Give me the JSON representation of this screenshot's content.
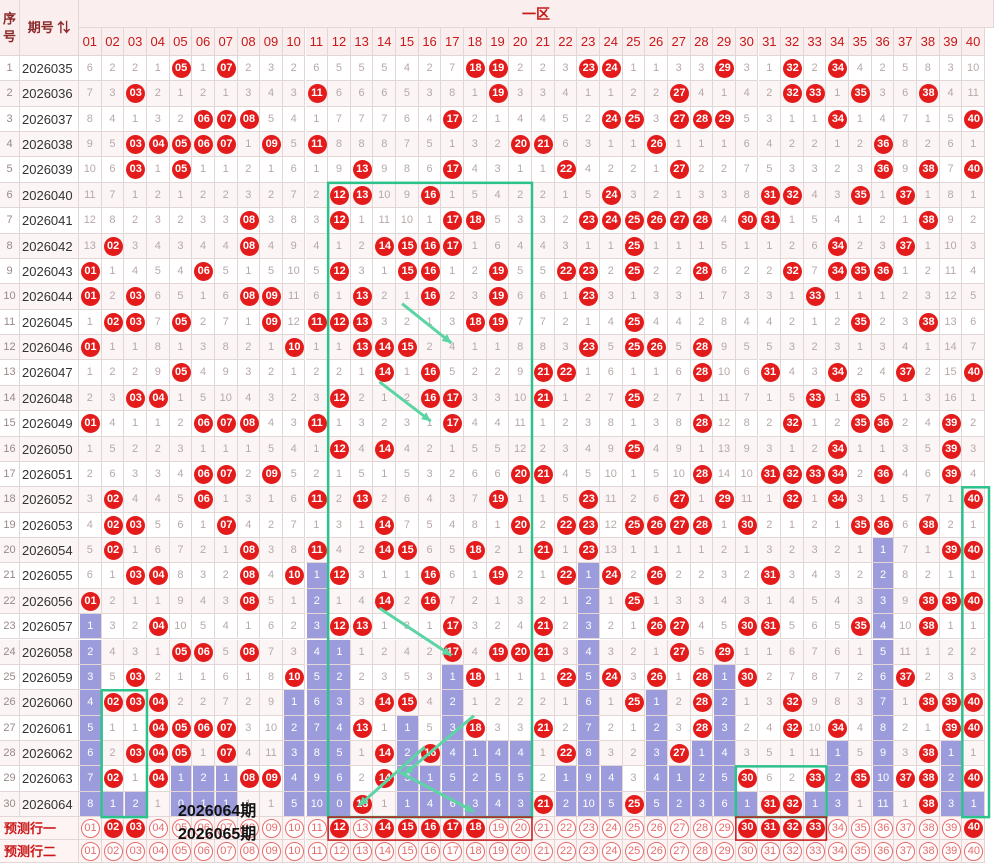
{
  "headers": {
    "seq": "序号",
    "period": "期号",
    "zone": "一区",
    "numbers": [
      "01",
      "02",
      "03",
      "04",
      "05",
      "06",
      "07",
      "08",
      "09",
      "10",
      "11",
      "12",
      "13",
      "14",
      "15",
      "16",
      "17",
      "18",
      "19",
      "20",
      "21",
      "22",
      "23",
      "24",
      "25",
      "26",
      "27",
      "28",
      "29",
      "30",
      "31",
      "32",
      "33",
      "34",
      "35",
      "36",
      "37",
      "38",
      "39",
      "40"
    ]
  },
  "chart_data": {
    "type": "table",
    "periods": [
      "2026035",
      "2026036",
      "2026037",
      "2026038",
      "2026039",
      "2026040",
      "2026041",
      "2026042",
      "2026043",
      "2026044",
      "2026045",
      "2026046",
      "2026047",
      "2026048",
      "2026049",
      "2026050",
      "2026051",
      "2026052",
      "2026053",
      "2026054",
      "2026055",
      "2026056",
      "2026057",
      "2026058",
      "2026059",
      "2026060",
      "2026061",
      "2026062",
      "2026063",
      "2026064"
    ],
    "draws": [
      [
        5,
        7,
        18,
        19,
        23,
        24,
        29,
        32,
        34
      ],
      [
        3,
        11,
        19,
        27,
        32,
        33,
        35,
        38
      ],
      [
        6,
        7,
        8,
        17,
        24,
        25,
        27,
        28,
        29,
        34,
        40
      ],
      [
        3,
        4,
        5,
        6,
        7,
        9,
        11,
        20,
        21,
        26,
        36
      ],
      [
        3,
        5,
        13,
        17,
        22,
        27,
        36,
        38,
        40
      ],
      [
        12,
        13,
        16,
        24,
        31,
        32,
        35,
        37
      ],
      [
        8,
        12,
        17,
        18,
        23,
        24,
        25,
        26,
        27,
        28,
        30,
        31,
        38
      ],
      [
        2,
        8,
        14,
        15,
        16,
        17,
        25,
        34,
        37
      ],
      [
        1,
        6,
        12,
        15,
        16,
        19,
        22,
        23,
        25,
        28,
        32,
        34,
        35,
        36
      ],
      [
        1,
        3,
        8,
        9,
        13,
        16,
        19,
        23,
        33
      ],
      [
        2,
        3,
        5,
        9,
        11,
        12,
        13,
        18,
        19,
        25,
        35,
        38
      ],
      [
        1,
        10,
        13,
        14,
        15,
        23,
        25,
        26,
        28
      ],
      [
        5,
        14,
        16,
        21,
        22,
        28,
        31,
        34,
        37,
        40
      ],
      [
        3,
        4,
        12,
        16,
        17,
        21,
        25,
        33,
        35
      ],
      [
        1,
        6,
        7,
        8,
        11,
        17,
        28,
        32,
        35,
        36,
        39
      ],
      [
        12,
        14,
        25,
        34,
        39
      ],
      [
        6,
        7,
        9,
        20,
        21,
        28,
        31,
        32,
        33,
        34,
        36,
        39
      ],
      [
        2,
        6,
        11,
        13,
        19,
        23,
        27,
        29,
        32,
        34,
        40
      ],
      [
        2,
        3,
        7,
        14,
        20,
        22,
        23,
        25,
        26,
        27,
        28,
        30,
        35,
        36,
        38
      ],
      [
        2,
        8,
        11,
        14,
        15,
        18,
        21,
        23,
        39,
        40
      ],
      [
        3,
        4,
        8,
        10,
        12,
        16,
        19,
        22,
        24,
        26,
        31
      ],
      [
        1,
        8,
        14,
        16,
        25,
        38,
        39,
        40
      ],
      [
        4,
        12,
        13,
        17,
        21,
        26,
        27,
        30,
        31,
        35,
        38
      ],
      [
        5,
        6,
        8,
        17,
        19,
        20,
        21,
        27,
        29
      ],
      [
        3,
        10,
        18,
        22,
        24,
        26,
        28,
        30,
        37
      ],
      [
        2,
        3,
        4,
        14,
        15,
        25,
        28,
        32,
        38,
        39,
        40
      ],
      [
        4,
        5,
        6,
        7,
        13,
        18,
        21,
        28,
        32,
        34,
        39,
        40
      ],
      [
        3,
        4,
        5,
        7,
        14,
        16,
        22,
        27,
        38
      ],
      [
        2,
        4,
        8,
        9,
        14,
        30,
        33,
        35,
        37,
        38,
        40
      ],
      [
        13,
        21,
        25,
        31,
        32,
        38
      ]
    ],
    "missing": {
      "row1": [
        6,
        2,
        2,
        1,
        0,
        1,
        0,
        2,
        3,
        2,
        6,
        5,
        5,
        5,
        4,
        2,
        7,
        0,
        0,
        2,
        2,
        3,
        0,
        0,
        1,
        1,
        3,
        3,
        0,
        3,
        1,
        0,
        2,
        0,
        4,
        2,
        5,
        8,
        3,
        10
      ]
    },
    "bars": [
      {
        "col": 1,
        "from": 23,
        "to": 30
      },
      {
        "col": 2,
        "from": 30,
        "to": 30
      },
      {
        "col": 3,
        "from": 30,
        "to": 30
      },
      {
        "col": 5,
        "from": 29,
        "to": 30
      },
      {
        "col": 6,
        "from": 29,
        "to": 30
      },
      {
        "col": 7,
        "from": 29,
        "to": 30
      },
      {
        "col": 10,
        "from": 26,
        "to": 30
      },
      {
        "col": 11,
        "from": 21,
        "to": 30
      },
      {
        "col": 12,
        "from": 23,
        "to": 30
      },
      {
        "col": 15,
        "from": 27,
        "to": 30
      },
      {
        "col": 16,
        "from": 28,
        "to": 30
      },
      {
        "col": 17,
        "from": 25,
        "to": 30
      },
      {
        "col": 18,
        "from": 28,
        "to": 30
      },
      {
        "col": 19,
        "from": 28,
        "to": 30
      },
      {
        "col": 20,
        "from": 28,
        "to": 30
      },
      {
        "col": 22,
        "from": 29,
        "to": 30
      },
      {
        "col": 23,
        "from": 21,
        "to": 30
      },
      {
        "col": 24,
        "from": 29,
        "to": 30
      },
      {
        "col": 26,
        "from": 26,
        "to": 30
      },
      {
        "col": 27,
        "from": 29,
        "to": 30
      },
      {
        "col": 28,
        "from": 28,
        "to": 30
      },
      {
        "col": 29,
        "from": 25,
        "to": 30
      },
      {
        "col": 30,
        "from": 30,
        "to": 30
      },
      {
        "col": 33,
        "from": 30,
        "to": 30
      },
      {
        "col": 34,
        "from": 28,
        "to": 30
      },
      {
        "col": 36,
        "from": 20,
        "to": 30
      },
      {
        "col": 39,
        "from": 28,
        "to": 30
      },
      {
        "col": 40,
        "from": 30,
        "to": 30
      }
    ],
    "bar_labels_last_row": [
      8,
      1,
      2,
      1,
      0,
      1,
      1,
      0,
      0,
      5,
      10,
      0,
      13,
      1,
      1,
      4,
      6,
      3,
      4,
      3,
      0,
      2,
      10,
      5,
      0,
      5,
      2,
      3,
      6,
      1,
      0,
      0,
      1,
      3,
      1,
      11,
      1,
      0,
      3,
      1
    ]
  },
  "prediction": {
    "row1_label": "预测行一",
    "row2_label": "预测行二",
    "row1_selected": [
      2,
      3,
      12,
      14,
      15,
      16,
      17,
      18,
      30,
      31,
      32,
      33,
      40
    ],
    "row2_selected": []
  },
  "annotations": {
    "caption1": "2026064期",
    "caption2": "2026065期",
    "box_color": "#2cc28c"
  }
}
